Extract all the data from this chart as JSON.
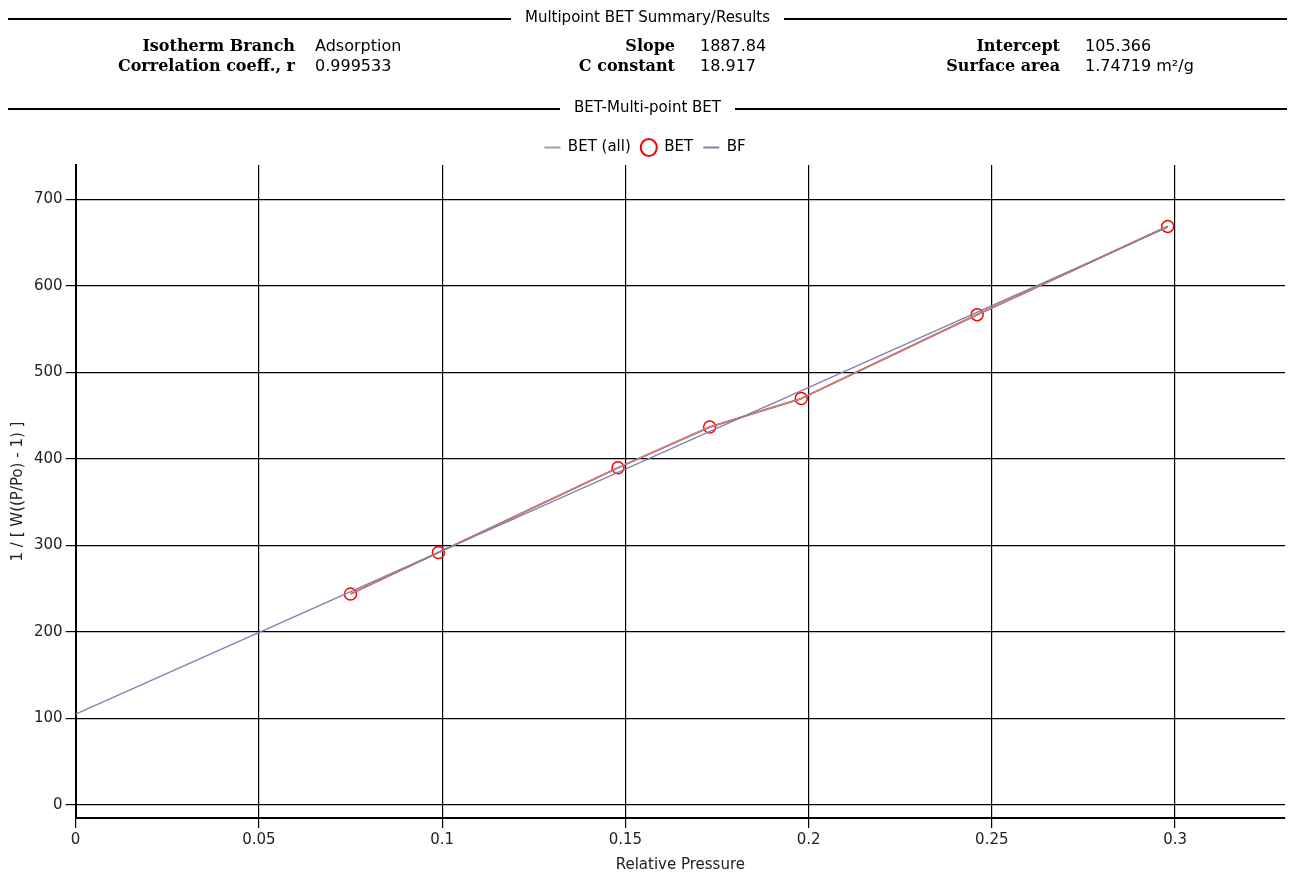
{
  "chart_data": {
    "type": "line",
    "title": "Multipoint BET Summary/Results",
    "subtitle": "BET-Multi-point BET",
    "annotations": [
      "Isotherm Branch",
      "Adsorption",
      "Slope",
      "1887.84",
      "Intercept",
      "105.366",
      "Correlation coeff., r",
      "0.999533",
      "C constant",
      "18.917",
      "Surface area",
      "1.74719 m²/g"
    ],
    "xlabel": "Relative Pressure",
    "ylabel": "1 / [ W((P/Po) - 1) ]",
    "series": [
      {
        "name": "BET (all)",
        "color": "#a0a0a0",
        "marker": "none",
        "x": [
          0.075,
          0.099,
          0.148,
          0.173,
          0.198,
          0.246,
          0.298
        ],
        "values": [
          244,
          292,
          390,
          437,
          470,
          567,
          669
        ]
      },
      {
        "name": "BET",
        "color": "#ff0000",
        "marker": "circle",
        "x": [
          0.075,
          0.099,
          0.148,
          0.173,
          0.198,
          0.246,
          0.298
        ],
        "values": [
          244,
          292,
          390,
          437,
          470,
          567,
          669
        ]
      },
      {
        "name": "BF",
        "color": "#8080b0",
        "marker": "none",
        "x": [
          0,
          0.298
        ],
        "values": [
          105,
          668
        ]
      }
    ],
    "xlim": [
      0,
      0.33
    ],
    "xticks": [
      0,
      0.05,
      0.1,
      0.15,
      0.2,
      0.25,
      0.3
    ],
    "ylim": [
      -15,
      740
    ],
    "yticks": [
      0,
      100,
      200,
      300,
      400,
      500,
      600,
      700
    ],
    "grid": true,
    "legend": "top"
  }
}
